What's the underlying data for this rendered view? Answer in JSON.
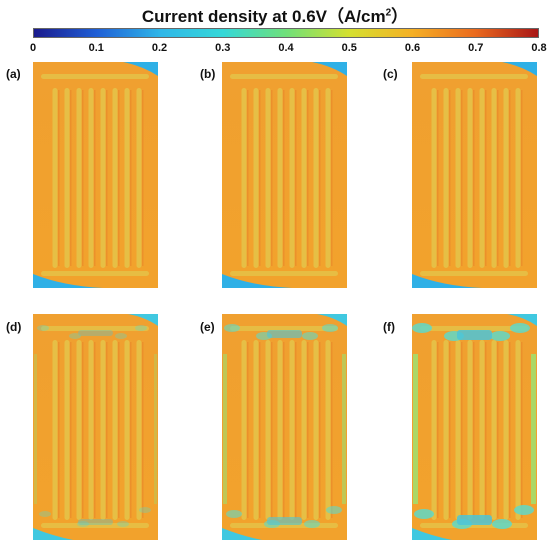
{
  "title": {
    "prefix": "Current density at 0.6V",
    "unit_open": "（A/cm",
    "unit_exp": "2",
    "unit_close": "）"
  },
  "colorbar": {
    "ticks": [
      "0",
      "0.1",
      "0.2",
      "0.3",
      "0.4",
      "0.5",
      "0.6",
      "0.7",
      "0.8"
    ],
    "colors": [
      "#1a1a8c",
      "#1f5fd6",
      "#2fb6e8",
      "#35d8d8",
      "#6fe07a",
      "#d4e030",
      "#f5b025",
      "#ea6a1e",
      "#a81616"
    ]
  },
  "panels": [
    {
      "label": "(a)",
      "pattern": "serpentine"
    },
    {
      "label": "(b)",
      "pattern": "serpentine"
    },
    {
      "label": "(c)",
      "pattern": "serpentine"
    },
    {
      "label": "(d)",
      "pattern": "parallel"
    },
    {
      "label": "(e)",
      "pattern": "parallel"
    },
    {
      "label": "(f)",
      "pattern": "parallel"
    }
  ]
}
